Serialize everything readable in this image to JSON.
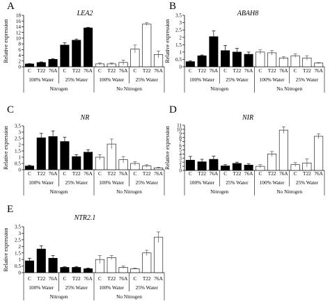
{
  "chart_data": [
    {
      "panel_letter": "A",
      "title": "LEA2",
      "type": "bar",
      "ylabel": "Relative expression",
      "ylim": [
        0,
        18
      ],
      "yticks": [
        0,
        2,
        4,
        6,
        8,
        10,
        12,
        14,
        16,
        18
      ],
      "conditions": [
        "C",
        "T22",
        "76A",
        "C",
        "T22",
        "76A",
        "C",
        "T22",
        "76A",
        "C",
        "T22",
        "76A"
      ],
      "water_groups": [
        "100% Water",
        "25% Water",
        "100% Water",
        "25% Water"
      ],
      "nitrogen_groups": [
        "Nitrogen",
        "No Nitrogen"
      ],
      "values": [
        1.0,
        1.5,
        2.6,
        7.6,
        9.3,
        13.6,
        1.0,
        1.0,
        1.5,
        6.2,
        14.9,
        4.3
      ],
      "errors": [
        0.1,
        0.2,
        0.2,
        0.8,
        0.4,
        0.2,
        0.3,
        0.3,
        0.8,
        1.4,
        0.5,
        1.2
      ],
      "fills": [
        "#000000",
        "#000000",
        "#000000",
        "#000000",
        "#000000",
        "#000000",
        "#ffffff",
        "#ffffff",
        "#ffffff",
        "#ffffff",
        "#ffffff",
        "#ffffff"
      ]
    },
    {
      "panel_letter": "B",
      "title": "ABAH8",
      "type": "bar",
      "ylabel": "Relative expression",
      "ylim": [
        0,
        3.5
      ],
      "yticks": [
        0,
        0.5,
        1,
        1.5,
        2,
        2.5,
        3,
        3.5
      ],
      "conditions": [
        "C",
        "T22",
        "76A",
        "C",
        "T22",
        "76A",
        "C",
        "T22",
        "76A",
        "C",
        "T22",
        "76A"
      ],
      "water_groups": [
        "100% Water",
        "25% Water",
        "100% Water",
        "25% Water"
      ],
      "nitrogen_groups": [
        "Nitrogen",
        "No Nitrogen"
      ],
      "values": [
        0.35,
        0.75,
        2.05,
        1.1,
        1.0,
        0.85,
        1.0,
        0.95,
        0.6,
        0.75,
        0.6,
        0.25
      ],
      "errors": [
        0.05,
        0.05,
        0.4,
        0.35,
        0.25,
        0.15,
        0.15,
        0.15,
        0.08,
        0.12,
        0.15,
        0.03
      ],
      "fills": [
        "#000000",
        "#000000",
        "#000000",
        "#000000",
        "#000000",
        "#000000",
        "#ffffff",
        "#ffffff",
        "#ffffff",
        "#ffffff",
        "#ffffff",
        "#ffffff"
      ]
    },
    {
      "panel_letter": "C",
      "title": "NR",
      "type": "bar",
      "ylabel": "Relative expression",
      "ylim": [
        0,
        3.5
      ],
      "yticks": [
        0,
        0.5,
        1,
        1.5,
        2,
        2.5,
        3,
        3.5
      ],
      "conditions": [
        "C",
        "T22",
        "76A",
        "C",
        "T22",
        "76A",
        "C",
        "T22",
        "76A",
        "C",
        "T22",
        "76A"
      ],
      "water_groups": [
        "100% Water",
        "25% Water",
        "100% Water",
        "25% Water"
      ],
      "nitrogen_groups": [
        "Nitrogen",
        "No Nitrogen"
      ],
      "values": [
        0.3,
        2.55,
        2.65,
        2.25,
        1.05,
        1.4,
        1.0,
        2.05,
        0.8,
        0.5,
        0.3,
        0.15
      ],
      "errors": [
        0.05,
        0.35,
        0.45,
        0.35,
        0.15,
        0.2,
        0.2,
        0.4,
        0.25,
        0.15,
        0.1,
        0.05
      ],
      "fills": [
        "#000000",
        "#000000",
        "#000000",
        "#000000",
        "#000000",
        "#000000",
        "#ffffff",
        "#ffffff",
        "#ffffff",
        "#ffffff",
        "#ffffff",
        "#ffffff"
      ]
    },
    {
      "panel_letter": "D",
      "title": "NIR",
      "type": "bar",
      "ylabel": "Relative expression",
      "ylim": [
        0,
        11
      ],
      "yticks": [
        0,
        1,
        2,
        3,
        4,
        5,
        6,
        7,
        8,
        9,
        10,
        11
      ],
      "conditions": [
        "C",
        "T22",
        "76A",
        "C",
        "T22",
        "76A",
        "C",
        "T22",
        "76A",
        "C",
        "T22",
        "76A"
      ],
      "water_groups": [
        "100% Water",
        "25% Water",
        "100% Water",
        "25% Water"
      ],
      "nitrogen_groups": [
        "Nitrogen",
        "No Nitrogen"
      ],
      "values": [
        2.5,
        2.1,
        2.7,
        1.1,
        1.7,
        1.3,
        1.0,
        4.0,
        9.8,
        1.4,
        1.8,
        8.3
      ],
      "errors": [
        0.9,
        0.6,
        0.8,
        0.3,
        0.3,
        0.3,
        0.4,
        0.6,
        0.8,
        0.5,
        1.0,
        0.6
      ],
      "fills": [
        "#000000",
        "#000000",
        "#000000",
        "#000000",
        "#000000",
        "#000000",
        "#ffffff",
        "#ffffff",
        "#ffffff",
        "#ffffff",
        "#ffffff",
        "#ffffff"
      ]
    },
    {
      "panel_letter": "E",
      "title": "NTR2.1",
      "type": "bar",
      "ylabel": "Relative expression",
      "ylim": [
        0,
        3.5
      ],
      "yticks": [
        0,
        0.5,
        1,
        1.5,
        2,
        2.5,
        3,
        3.5
      ],
      "conditions": [
        "C",
        "T22",
        "76A",
        "C",
        "T22",
        "76A",
        "C",
        "T22",
        "76A",
        "C",
        "T22",
        "76A"
      ],
      "water_groups": [
        "100% Water",
        "25% Water",
        "100% Water",
        "25% Water"
      ],
      "nitrogen_groups": [
        "Nitrogen",
        "No Nitrogen"
      ],
      "values": [
        0.9,
        1.8,
        1.1,
        0.4,
        0.4,
        0.3,
        1.0,
        1.15,
        0.4,
        0.3,
        1.5,
        2.7
      ],
      "errors": [
        0.2,
        0.25,
        0.2,
        0.05,
        0.05,
        0.05,
        0.3,
        0.15,
        0.1,
        0.05,
        0.2,
        0.4
      ],
      "fills": [
        "#000000",
        "#000000",
        "#000000",
        "#000000",
        "#000000",
        "#000000",
        "#ffffff",
        "#ffffff",
        "#ffffff",
        "#ffffff",
        "#ffffff",
        "#ffffff"
      ]
    }
  ]
}
